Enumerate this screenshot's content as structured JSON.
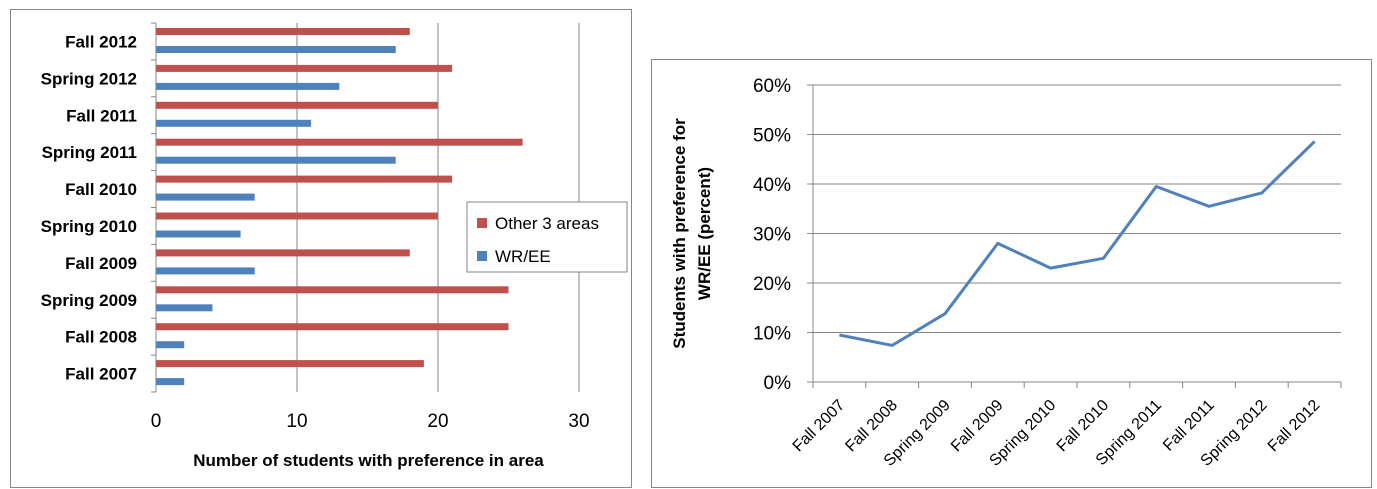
{
  "chart_data": [
    {
      "type": "bar",
      "orientation": "horizontal",
      "categories": [
        "Fall 2007",
        "Fall 2008",
        "Spring 2009",
        "Fall 2009",
        "Spring 2010",
        "Fall 2010",
        "Spring 2011",
        "Fall 2011",
        "Spring 2012",
        "Fall 2012"
      ],
      "series": [
        {
          "name": "Other 3 areas",
          "color": "#c0504d",
          "values": [
            19,
            25,
            25,
            18,
            20,
            21,
            26,
            20,
            21,
            18
          ]
        },
        {
          "name": "WR/EE",
          "color": "#4f81bd",
          "values": [
            2,
            2,
            4,
            7,
            6,
            7,
            17,
            11,
            13,
            17
          ]
        }
      ],
      "xlabel": "Number of students with preference in area",
      "ylabel": "",
      "xlim": [
        0,
        30
      ],
      "xticks": [
        "0",
        "10",
        "20",
        "30"
      ],
      "grid": "vertical",
      "legend": "right"
    },
    {
      "type": "line",
      "categories": [
        "Fall 2007",
        "Fall 2008",
        "Spring 2009",
        "Fall 2009",
        "Spring 2010",
        "Fall 2010",
        "Spring 2011",
        "Fall 2011",
        "Spring 2012",
        "Fall 2012"
      ],
      "series": [
        {
          "color": "#4f81bd",
          "values": [
            9.5,
            7.4,
            13.8,
            28.0,
            23.0,
            25.0,
            39.5,
            35.5,
            38.2,
            48.6
          ]
        }
      ],
      "xlabel": "",
      "ylabel_lines": [
        "Students with preference for",
        "WR/EE (percent)"
      ],
      "ylim": [
        0,
        60
      ],
      "yticks": [
        "0%",
        "10%",
        "20%",
        "30%",
        "40%",
        "50%",
        "60%"
      ],
      "grid": "horizontal",
      "legend": "none"
    }
  ]
}
